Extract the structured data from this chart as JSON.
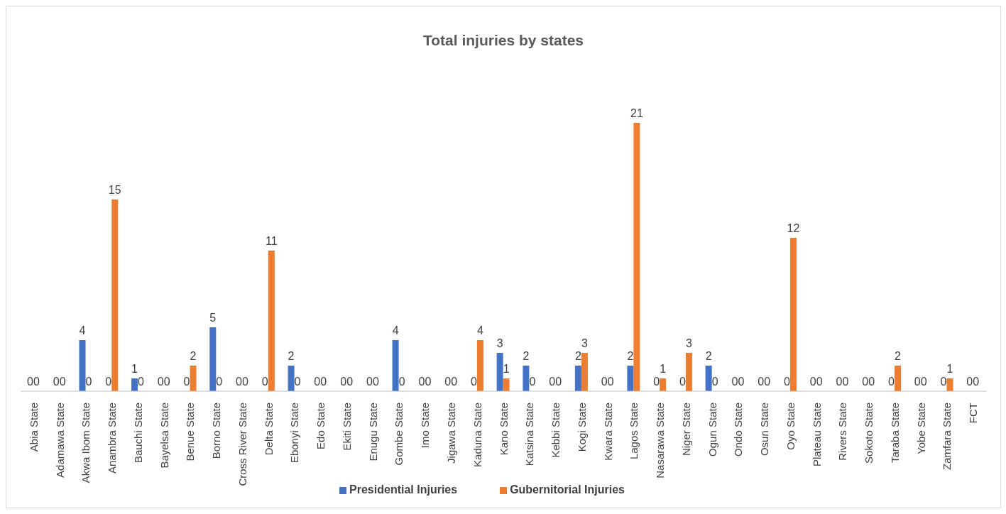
{
  "chart_data": {
    "type": "bar",
    "title": "Total injuries by states",
    "categories": [
      "Abia State",
      "Adamawa State",
      "Akwa Ibom State",
      "Anambra State",
      "Bauchi State",
      "Bayelsa State",
      "Benue State",
      "Borno State",
      "Cross River State",
      "Delta State",
      "Ebonyi State",
      "Edo State",
      "Ekiti State",
      "Enugu State",
      "Gombe State",
      "Imo State",
      "Jigawa State",
      "Kaduna State",
      "Kano State",
      "Katsina State",
      "Kebbi State",
      "Kogi State",
      "Kwara State",
      "Lagos State",
      "Nasarawa State",
      "Niger State",
      "Ogun State",
      "Ondo State",
      "Osun State",
      "Oyo State",
      "Plateau State",
      "Rivers State",
      "Sokoto State",
      "Taraba State",
      "Yobe State",
      "Zamfara State",
      "FCT"
    ],
    "series": [
      {
        "name": "Presidential Injuries",
        "color": "#4472c4",
        "values": [
          0,
          0,
          4,
          0,
          1,
          0,
          0,
          5,
          0,
          0,
          2,
          0,
          0,
          0,
          4,
          0,
          0,
          0,
          3,
          2,
          0,
          2,
          0,
          2,
          0,
          0,
          2,
          0,
          0,
          0,
          0,
          0,
          0,
          0,
          0,
          0,
          0
        ]
      },
      {
        "name": "Gubernitorial Injuries",
        "color": "#ed7d31",
        "values": [
          0,
          0,
          0,
          15,
          0,
          0,
          2,
          0,
          0,
          11,
          0,
          0,
          0,
          0,
          0,
          0,
          0,
          4,
          1,
          0,
          0,
          3,
          0,
          21,
          1,
          3,
          0,
          0,
          0,
          12,
          0,
          0,
          0,
          2,
          0,
          1,
          0
        ]
      }
    ],
    "data_labels": true,
    "grid": false,
    "legend": "bottom"
  }
}
